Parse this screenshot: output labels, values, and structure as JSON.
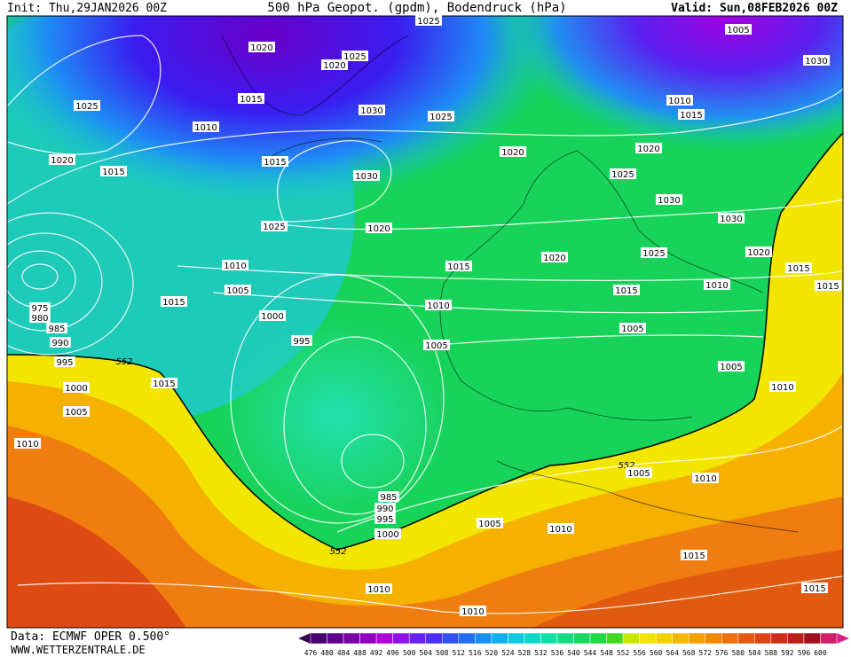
{
  "header": {
    "init": "Init: Thu,29JAN2026 00Z",
    "title": "500 hPa Geopot. (gpdm), Bodendruck (hPa)",
    "valid": "Valid: Sun,08FEB2026 00Z"
  },
  "map": {
    "isobar_labels": [
      1025,
      1020,
      1025,
      1020,
      1005,
      1030,
      1025,
      1015,
      1030,
      1025,
      1010,
      1015,
      1010,
      1020,
      1015,
      1015,
      1030,
      1020,
      1020,
      1025,
      1030,
      1030,
      1025,
      1020,
      1020,
      1025,
      1020,
      1010,
      1015,
      1015,
      1015,
      1005,
      1015,
      1010,
      1015,
      1010,
      975,
      980,
      985,
      1000,
      990,
      995,
      1005,
      1005,
      995,
      552,
      1015,
      1000,
      1005,
      1010,
      1005,
      1010,
      552,
      1005,
      1010,
      985,
      990,
      995,
      1000,
      1005,
      1010,
      552,
      1015,
      1010,
      1015,
      1010
    ]
  },
  "footer": {
    "data": "Data: ECMWF OPER 0.500°",
    "site": "WWW.WETTERZENTRALE.DE"
  },
  "legend": {
    "labels": [
      476,
      480,
      484,
      488,
      492,
      496,
      500,
      504,
      508,
      512,
      516,
      520,
      524,
      528,
      532,
      536,
      540,
      544,
      548,
      552,
      556,
      560,
      564,
      568,
      572,
      576,
      580,
      584,
      588,
      592,
      596,
      600
    ]
  }
}
